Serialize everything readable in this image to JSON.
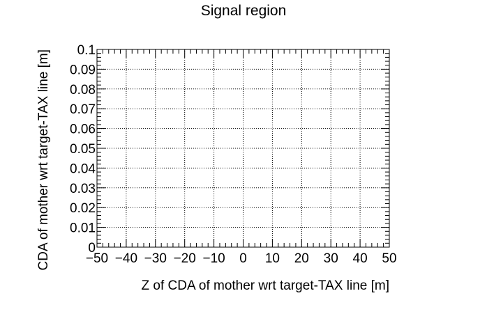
{
  "chart_data": {
    "type": "scatter",
    "title": "Signal region",
    "xlabel": "Z of CDA of mother wrt target-TAX line [m]",
    "ylabel": "CDA of mother wrt target-TAX line [m]",
    "xlim": [
      -50,
      50
    ],
    "ylim": [
      0,
      0.1
    ],
    "grid": true,
    "x_ticks": [
      -50,
      -40,
      -30,
      -20,
      -10,
      0,
      10,
      20,
      30,
      40,
      50
    ],
    "x_tick_labels": [
      "−50",
      "−40",
      "−30",
      "−20",
      "−10",
      "0",
      "10",
      "20",
      "30",
      "40",
      "50"
    ],
    "y_ticks": [
      0,
      0.01,
      0.02,
      0.03,
      0.04,
      0.05,
      0.06,
      0.07,
      0.08,
      0.09,
      0.1
    ],
    "y_tick_labels": [
      "0",
      "0.01",
      "0.02",
      "0.03",
      "0.04",
      "0.05",
      "0.06",
      "0.07",
      "0.08",
      "0.09",
      "0.1"
    ],
    "series": [
      {
        "x": [],
        "y": []
      }
    ]
  }
}
